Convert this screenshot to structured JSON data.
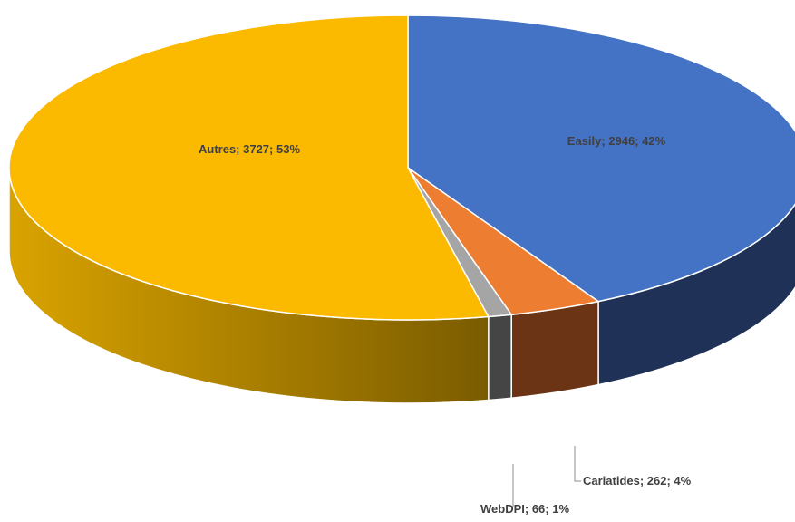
{
  "chart_data": {
    "type": "pie",
    "style": "3d",
    "slices": [
      {
        "name": "Easily",
        "value": 2946,
        "percent": 42,
        "label": "Easily; 2946; 42%",
        "color": "#4472C4",
        "side_color": "#1F3157"
      },
      {
        "name": "Cariatides",
        "value": 262,
        "percent": 4,
        "label": "Cariatides; 262; 4%",
        "color": "#ED7D31",
        "side_color": "#6B3515"
      },
      {
        "name": "WebDPI",
        "value": 66,
        "percent": 1,
        "label": "WebDPI; 66; 1%",
        "color": "#A5A5A5",
        "side_color": "#454545"
      },
      {
        "name": "Autres",
        "value": 3727,
        "percent": 53,
        "label": "Autres; 3727; 53%",
        "color": "#FBBA00",
        "side_color": "#C99400"
      }
    ],
    "legend": "none"
  }
}
